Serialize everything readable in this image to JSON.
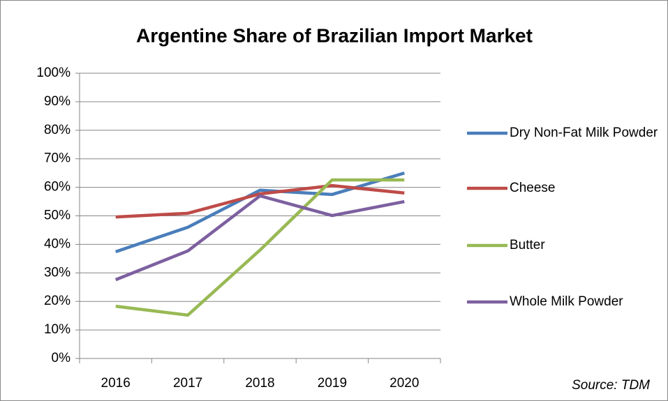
{
  "chart_data": {
    "type": "line",
    "title": "Argentine Share of Brazilian Import Market",
    "categories": [
      "2016",
      "2017",
      "2018",
      "2019",
      "2020"
    ],
    "series": [
      {
        "name": "Dry Non-Fat Milk Powder",
        "color": "#4a7ebb",
        "values": [
          37.4,
          46,
          59,
          57.5,
          65
        ]
      },
      {
        "name": "Cheese",
        "color": "#be4b48",
        "values": [
          49.6,
          50.9,
          57.7,
          60.6,
          58
        ]
      },
      {
        "name": "Butter",
        "color": "#98b954",
        "values": [
          18.3,
          15.2,
          38,
          62.6,
          62.6
        ]
      },
      {
        "name": "Whole Milk Powder",
        "color": "#7d60a0",
        "values": [
          27.6,
          37.7,
          57,
          50.1,
          55
        ]
      }
    ],
    "ylim": [
      0,
      100
    ],
    "yticks": [
      {
        "value": 0,
        "label": "0%"
      },
      {
        "value": 10,
        "label": "10%"
      },
      {
        "value": 20,
        "label": "20%"
      },
      {
        "value": 30,
        "label": "30%"
      },
      {
        "value": 40,
        "label": "40%"
      },
      {
        "value": 50,
        "label": "50%"
      },
      {
        "value": 60,
        "label": "60%"
      },
      {
        "value": 70,
        "label": "70%"
      },
      {
        "value": 80,
        "label": "80%"
      },
      {
        "value": 90,
        "label": "90%"
      },
      {
        "value": 100,
        "label": "100%"
      }
    ],
    "grid": true,
    "legend": "right",
    "annotation": "Source: TDM"
  }
}
